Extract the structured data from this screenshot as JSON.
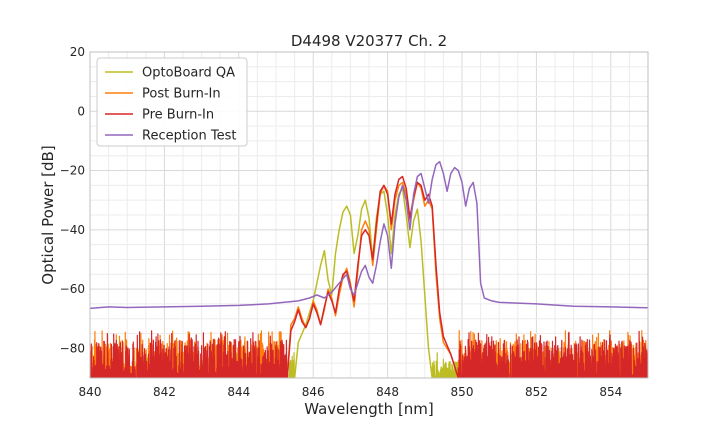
{
  "chart_data": {
    "type": "line",
    "title": "D4498 V20377 Ch. 2",
    "xlabel": "Wavelength [nm]",
    "ylabel": "Optical Power [dB]",
    "xlim": [
      840,
      855
    ],
    "ylim": [
      -90,
      20
    ],
    "xticks": [
      840,
      842,
      844,
      846,
      848,
      850,
      852,
      854
    ],
    "yticks": [
      20,
      0,
      -20,
      -40,
      -60,
      -80
    ],
    "ytick_labels": [
      "20",
      "0",
      "−20",
      "−40",
      "−60",
      "−80"
    ],
    "grid": true,
    "legend_position": "top-left",
    "series": [
      {
        "name": "OptoBoard QA",
        "color": "#bcbd22",
        "noise_floor_range": [
          840.0,
          845.5,
          849.2,
          855.0
        ],
        "points": [
          [
            845.5,
            -90
          ],
          [
            845.6,
            -78
          ],
          [
            845.8,
            -72
          ],
          [
            846.0,
            -64
          ],
          [
            846.2,
            -52
          ],
          [
            846.3,
            -47
          ],
          [
            846.4,
            -57
          ],
          [
            846.5,
            -62
          ],
          [
            846.6,
            -48
          ],
          [
            846.7,
            -40
          ],
          [
            846.8,
            -34
          ],
          [
            846.9,
            -32
          ],
          [
            847.0,
            -35
          ],
          [
            847.1,
            -48
          ],
          [
            847.2,
            -42
          ],
          [
            847.3,
            -33
          ],
          [
            847.4,
            -30
          ],
          [
            847.5,
            -36
          ],
          [
            847.6,
            -50
          ],
          [
            847.7,
            -36
          ],
          [
            847.8,
            -28
          ],
          [
            847.9,
            -27
          ],
          [
            848.0,
            -35
          ],
          [
            848.1,
            -48
          ],
          [
            848.2,
            -35
          ],
          [
            848.3,
            -28
          ],
          [
            848.4,
            -26
          ],
          [
            848.5,
            -35
          ],
          [
            848.6,
            -46
          ],
          [
            848.7,
            -37
          ],
          [
            848.8,
            -33
          ],
          [
            848.9,
            -44
          ],
          [
            849.0,
            -62
          ],
          [
            849.1,
            -80
          ],
          [
            849.2,
            -90
          ]
        ]
      },
      {
        "name": "Post Burn-In",
        "color": "#ff7f0e",
        "noise_floor_range": [
          840.0,
          845.3,
          849.9,
          855.0
        ],
        "points": [
          [
            845.3,
            -90
          ],
          [
            845.4,
            -72
          ],
          [
            845.5,
            -70
          ],
          [
            845.6,
            -66
          ],
          [
            845.7,
            -70
          ],
          [
            845.8,
            -73
          ],
          [
            845.9,
            -70
          ],
          [
            846.0,
            -64
          ],
          [
            846.1,
            -67
          ],
          [
            846.2,
            -72
          ],
          [
            846.3,
            -67
          ],
          [
            846.4,
            -60
          ],
          [
            846.5,
            -63
          ],
          [
            846.6,
            -69
          ],
          [
            846.7,
            -62
          ],
          [
            846.8,
            -56
          ],
          [
            846.9,
            -53
          ],
          [
            847.0,
            -58
          ],
          [
            847.1,
            -66
          ],
          [
            847.2,
            -54
          ],
          [
            847.3,
            -40
          ],
          [
            847.4,
            -37
          ],
          [
            847.5,
            -40
          ],
          [
            847.6,
            -52
          ],
          [
            847.7,
            -40
          ],
          [
            847.8,
            -28
          ],
          [
            847.9,
            -25
          ],
          [
            848.0,
            -27
          ],
          [
            848.1,
            -40
          ],
          [
            848.2,
            -30
          ],
          [
            848.3,
            -25
          ],
          [
            848.4,
            -24
          ],
          [
            848.5,
            -28
          ],
          [
            848.6,
            -37
          ],
          [
            848.7,
            -30
          ],
          [
            848.8,
            -24
          ],
          [
            848.9,
            -26
          ],
          [
            849.0,
            -32
          ],
          [
            849.1,
            -30
          ],
          [
            849.2,
            -33
          ],
          [
            849.3,
            -55
          ],
          [
            849.4,
            -70
          ],
          [
            849.5,
            -78
          ],
          [
            849.7,
            -82
          ],
          [
            849.9,
            -90
          ]
        ]
      },
      {
        "name": "Pre Burn-In",
        "color": "#d62728",
        "noise_floor_range": [
          840.0,
          845.3,
          849.9,
          855.0
        ],
        "points": [
          [
            845.3,
            -90
          ],
          [
            845.4,
            -74
          ],
          [
            845.5,
            -71
          ],
          [
            845.6,
            -67
          ],
          [
            845.7,
            -71
          ],
          [
            845.8,
            -73
          ],
          [
            845.9,
            -70
          ],
          [
            846.0,
            -65
          ],
          [
            846.1,
            -68
          ],
          [
            846.2,
            -72
          ],
          [
            846.3,
            -66
          ],
          [
            846.4,
            -61
          ],
          [
            846.5,
            -64
          ],
          [
            846.6,
            -68
          ],
          [
            846.7,
            -60
          ],
          [
            846.8,
            -55
          ],
          [
            846.9,
            -54
          ],
          [
            847.0,
            -59
          ],
          [
            847.1,
            -64
          ],
          [
            847.2,
            -52
          ],
          [
            847.3,
            -42
          ],
          [
            847.4,
            -40
          ],
          [
            847.5,
            -42
          ],
          [
            847.6,
            -50
          ],
          [
            847.7,
            -38
          ],
          [
            847.8,
            -27
          ],
          [
            847.9,
            -25
          ],
          [
            848.0,
            -28
          ],
          [
            848.1,
            -38
          ],
          [
            848.2,
            -28
          ],
          [
            848.3,
            -23
          ],
          [
            848.4,
            -22
          ],
          [
            848.5,
            -26
          ],
          [
            848.6,
            -36
          ],
          [
            848.7,
            -29
          ],
          [
            848.8,
            -24
          ],
          [
            848.9,
            -25
          ],
          [
            849.0,
            -30
          ],
          [
            849.1,
            -28
          ],
          [
            849.2,
            -32
          ],
          [
            849.3,
            -52
          ],
          [
            849.4,
            -68
          ],
          [
            849.5,
            -76
          ],
          [
            849.7,
            -82
          ],
          [
            849.9,
            -90
          ]
        ]
      },
      {
        "name": "Reception Test",
        "color": "#9467bd",
        "points": [
          [
            840.0,
            -66.5
          ],
          [
            840.5,
            -66
          ],
          [
            841.0,
            -66.2
          ],
          [
            842.0,
            -66
          ],
          [
            843.0,
            -65.8
          ],
          [
            844.0,
            -65.5
          ],
          [
            844.8,
            -65
          ],
          [
            845.2,
            -64.5
          ],
          [
            845.6,
            -64
          ],
          [
            845.9,
            -63
          ],
          [
            846.1,
            -62
          ],
          [
            846.3,
            -63
          ],
          [
            846.5,
            -61
          ],
          [
            846.7,
            -58
          ],
          [
            846.9,
            -55
          ],
          [
            847.0,
            -60
          ],
          [
            847.1,
            -62
          ],
          [
            847.2,
            -58
          ],
          [
            847.3,
            -54
          ],
          [
            847.4,
            -52
          ],
          [
            847.5,
            -56
          ],
          [
            847.6,
            -58
          ],
          [
            847.7,
            -52
          ],
          [
            847.8,
            -44
          ],
          [
            847.9,
            -38
          ],
          [
            848.0,
            -42
          ],
          [
            848.1,
            -53
          ],
          [
            848.2,
            -38
          ],
          [
            848.3,
            -29
          ],
          [
            848.4,
            -25
          ],
          [
            848.5,
            -30
          ],
          [
            848.6,
            -40
          ],
          [
            848.7,
            -28
          ],
          [
            848.8,
            -22
          ],
          [
            848.9,
            -21
          ],
          [
            849.0,
            -26
          ],
          [
            849.1,
            -31
          ],
          [
            849.2,
            -23
          ],
          [
            849.3,
            -18
          ],
          [
            849.4,
            -17
          ],
          [
            849.5,
            -21
          ],
          [
            849.6,
            -27
          ],
          [
            849.7,
            -21
          ],
          [
            849.8,
            -19
          ],
          [
            849.9,
            -20
          ],
          [
            850.0,
            -24
          ],
          [
            850.1,
            -32
          ],
          [
            850.2,
            -26
          ],
          [
            850.3,
            -24
          ],
          [
            850.4,
            -31
          ],
          [
            850.5,
            -58
          ],
          [
            850.6,
            -63
          ],
          [
            850.8,
            -64
          ],
          [
            851.0,
            -64.5
          ],
          [
            852.0,
            -65
          ],
          [
            853.0,
            -65.8
          ],
          [
            854.0,
            -66
          ],
          [
            855.0,
            -66.3
          ]
        ]
      }
    ]
  }
}
